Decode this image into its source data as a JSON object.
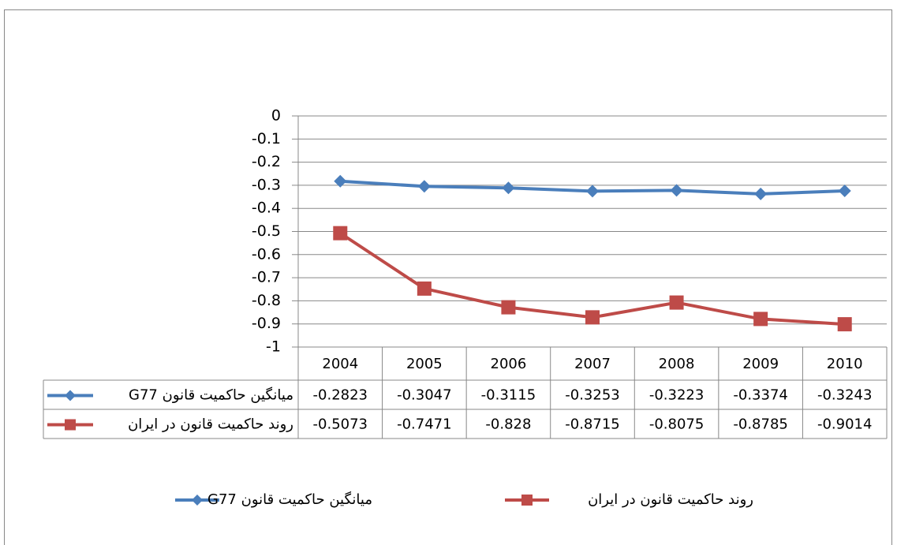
{
  "chart_data": {
    "type": "line",
    "categories": [
      "2004",
      "2005",
      "2006",
      "2007",
      "2008",
      "2009",
      "2010"
    ],
    "series": [
      {
        "name": "میانگین حاکمیت قانون G77",
        "color": "#4a7ebb",
        "marker": "diamond",
        "values": [
          -0.2823,
          -0.3047,
          -0.3115,
          -0.3253,
          -0.3223,
          -0.3374,
          -0.3243
        ]
      },
      {
        "name": "روند حاکمیت قانون در ایران",
        "color": "#be4b48",
        "marker": "square",
        "values": [
          -0.5073,
          -0.7471,
          -0.828,
          -0.8715,
          -0.8075,
          -0.8785,
          -0.9014
        ]
      }
    ],
    "ylim": [
      -1,
      0
    ],
    "yticks": [
      0,
      -0.1,
      -0.2,
      -0.3,
      -0.4,
      -0.5,
      -0.6,
      -0.7,
      -0.8,
      -0.9,
      -1
    ],
    "grid": true,
    "data_table": true,
    "legend": "bottom"
  }
}
